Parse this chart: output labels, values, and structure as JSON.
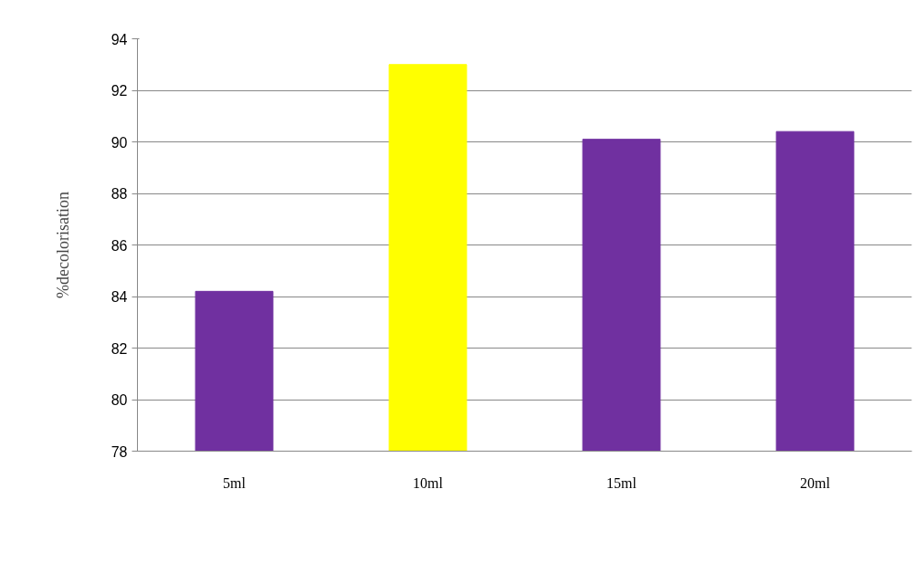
{
  "chart_data": {
    "type": "bar",
    "ylabel": "%decolorisation",
    "categories": [
      "5ml",
      "10ml",
      "15ml",
      "20ml"
    ],
    "values": [
      84.2,
      93.0,
      90.1,
      90.4
    ],
    "colors": [
      "#7030a0",
      "#ffff00",
      "#7030a0",
      "#7030a0"
    ],
    "ylim": [
      78,
      94
    ],
    "yticks": [
      78,
      80,
      82,
      84,
      86,
      88,
      90,
      92,
      94
    ],
    "grid": "y"
  }
}
